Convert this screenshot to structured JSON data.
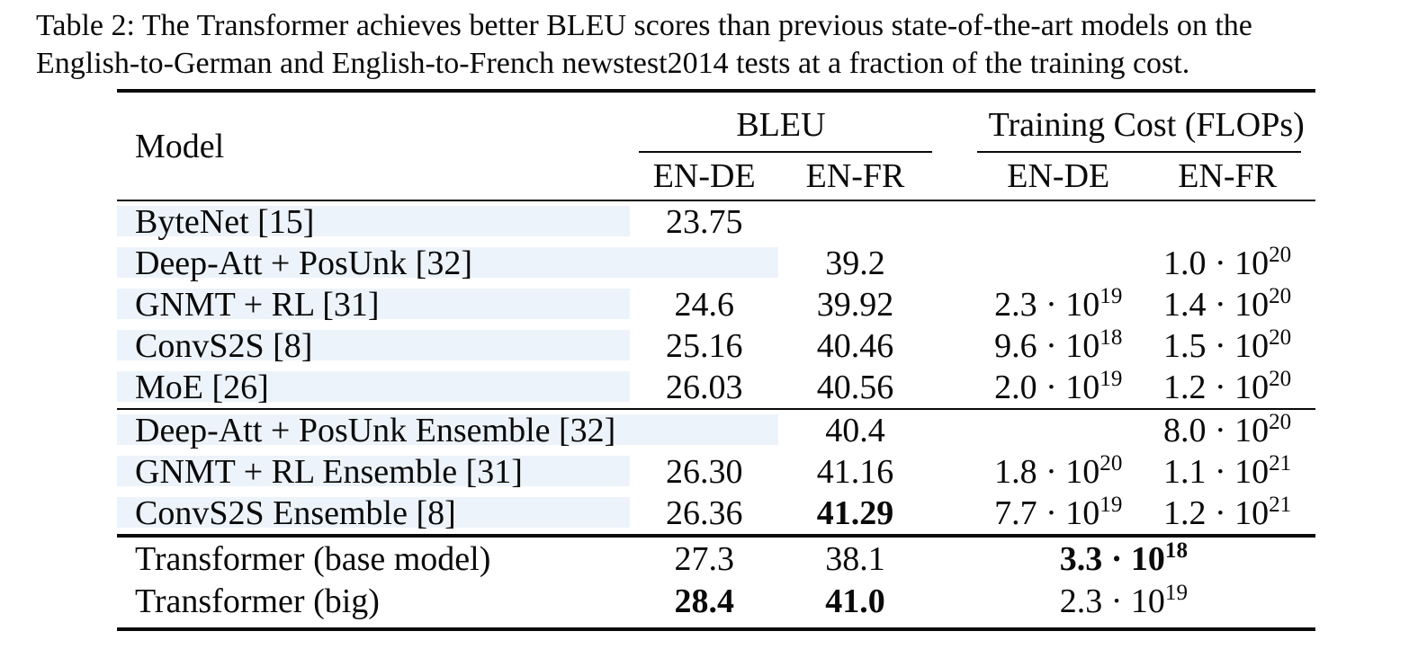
{
  "caption": {
    "label": "Table 2:",
    "lines": [
      "Table 2: The Transformer achieves better BLEU scores than previous state-of-the-art models on the",
      "English-to-German and English-to-French newstest2014 tests at a fraction of the training cost."
    ]
  },
  "table": {
    "headers": {
      "model": "Model",
      "bleu_group": "BLEU",
      "cost_group": "Training Cost (FLOPs)",
      "bleu_en_de": "EN-DE",
      "bleu_en_fr": "EN-FR",
      "cost_en_de": "EN-DE",
      "cost_en_fr": "EN-FR"
    },
    "colors": {
      "row_highlight": "#edf3fa",
      "rule": "#0a0a0a",
      "background": "#ffffff"
    },
    "groups": [
      {
        "rows": [
          {
            "model": "ByteNet [15]",
            "bleu_en_de": "23.75"
          },
          {
            "model": "Deep-Att + PosUnk [32]",
            "bleu_en_fr": "39.2",
            "cost_en_fr": {
              "m": "1.0 · 10",
              "e": "20"
            }
          },
          {
            "model": "GNMT + RL [31]",
            "bleu_en_de": "24.6",
            "bleu_en_fr": "39.92",
            "cost_en_de": {
              "m": "2.3 · 10",
              "e": "19"
            },
            "cost_en_fr": {
              "m": "1.4 · 10",
              "e": "20"
            }
          },
          {
            "model": "ConvS2S [8]",
            "bleu_en_de": "25.16",
            "bleu_en_fr": "40.46",
            "cost_en_de": {
              "m": "9.6 · 10",
              "e": "18"
            },
            "cost_en_fr": {
              "m": "1.5 · 10",
              "e": "20"
            }
          },
          {
            "model": "MoE [26]",
            "bleu_en_de": "26.03",
            "bleu_en_fr": "40.56",
            "cost_en_de": {
              "m": "2.0 · 10",
              "e": "19"
            },
            "cost_en_fr": {
              "m": "1.2 · 10",
              "e": "20"
            }
          }
        ]
      },
      {
        "rows": [
          {
            "model": "Deep-Att + PosUnk Ensemble [32]",
            "bleu_en_fr": "40.4",
            "cost_en_fr": {
              "m": "8.0 · 10",
              "e": "20"
            }
          },
          {
            "model": "GNMT + RL Ensemble [31]",
            "bleu_en_de": "26.30",
            "bleu_en_fr": "41.16",
            "cost_en_de": {
              "m": "1.8 · 10",
              "e": "20"
            },
            "cost_en_fr": {
              "m": "1.1 · 10",
              "e": "21"
            }
          },
          {
            "model": "ConvS2S Ensemble [8]",
            "bleu_en_de": "26.36",
            "bleu_en_fr": "41.29",
            "cost_en_de": {
              "m": "7.7 · 10",
              "e": "19"
            },
            "cost_en_fr": {
              "m": "1.2 · 10",
              "e": "21"
            }
          }
        ]
      },
      {
        "rows": [
          {
            "model": "Transformer (base model)",
            "bleu_en_de": "27.3",
            "bleu_en_fr": "38.1",
            "cost_merged": {
              "m": "3.3 · 10",
              "e": "18"
            }
          },
          {
            "model": "Transformer (big)",
            "bleu_en_de": "28.4",
            "bleu_en_fr": "41.0",
            "cost_merged": {
              "m": "2.3 · 10",
              "e": "19"
            }
          }
        ]
      }
    ]
  }
}
